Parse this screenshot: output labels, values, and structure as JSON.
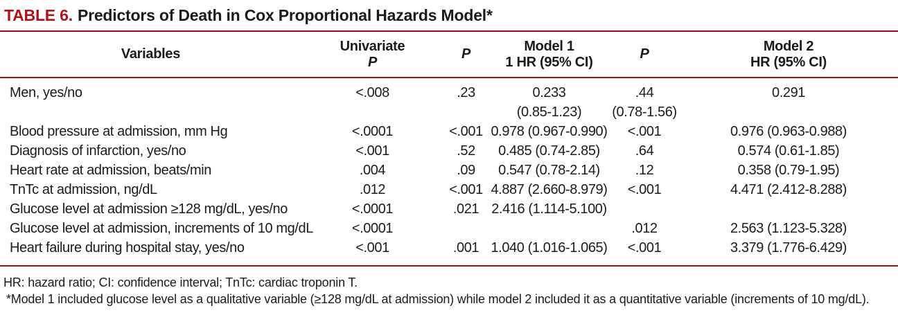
{
  "title": {
    "label": "TABLE 6.",
    "text": "Predictors of Death in Cox Proportional Hazards Model*"
  },
  "colors": {
    "accent_red": "#b11218",
    "rule_red": "#9e1016",
    "text": "#1b1b1b",
    "background": "#ffffff"
  },
  "table": {
    "headers": {
      "variables": "Variables",
      "univariate_line1": "Univariate",
      "univariate_line2": "P",
      "p1": "P",
      "model1_line1": "Model 1",
      "model1_line2": "1 HR (95% CI)",
      "p2": "P",
      "model2_line1": "Model 2",
      "model2_line2": "HR (95% CI)"
    },
    "rows": [
      {
        "variable": "Men, yes/no",
        "univariate_p": "<.008",
        "p1": ".23",
        "model1": "0.233",
        "model1_sub": "(0.85-1.23)",
        "p2": ".44",
        "p2_sub": "(0.78-1.56)",
        "model2": "0.291"
      },
      {
        "variable": "Blood pressure at admission, mm Hg",
        "univariate_p": "<.0001",
        "p1": "<.001",
        "model1": "0.978 (0.967-0.990)",
        "p2": "<.001",
        "model2": "0.976 (0.963-0.988)"
      },
      {
        "variable": "Diagnosis of infarction, yes/no",
        "univariate_p": "<.001",
        "p1": ".52",
        "model1": "0.485 (0.74-2.85)",
        "p2": ".64",
        "model2": "0.574 (0.61-1.85)"
      },
      {
        "variable": "Heart rate at admission, beats/min",
        "univariate_p": ".004",
        "p1": ".09",
        "model1": "0.547 (0.78-2.14)",
        "p2": ".12",
        "model2": "0.358 (0.79-1.95)"
      },
      {
        "variable": "TnTc at admission, ng/dL",
        "univariate_p": ".012",
        "p1": "<.001",
        "model1": "4.887 (2.660-8.979)",
        "p2": "<.001",
        "model2": "4.471 (2.412-8.288)"
      },
      {
        "variable": "Glucose level at admission ≥128 mg/dL, yes/no",
        "univariate_p": "<.0001",
        "p1": ".021",
        "model1": "2.416 (1.114-5.100)",
        "p2": "",
        "model2": ""
      },
      {
        "variable": "Glucose level at admission, increments of 10 mg/dL",
        "univariate_p": "<.0001",
        "p1": "",
        "model1": "",
        "p2": ".012",
        "model2": "2.563 (1.123-5.328)"
      },
      {
        "variable": "Heart failure during hospital stay, yes/no",
        "univariate_p": "<.001",
        "p1": ".001",
        "model1": "1.040 (1.016-1.065)",
        "p2": "<.001",
        "model2": "3.379 (1.776-6.429)"
      }
    ]
  },
  "footnotes": [
    "HR: hazard ratio; CI: confidence interval; TnTc: cardiac troponin T.",
    "*Model 1 included glucose level as a qualitative variable (≥128 mg/dL at admission) while model 2 included it as a quantitative variable (increments of 10 mg/dL)."
  ]
}
